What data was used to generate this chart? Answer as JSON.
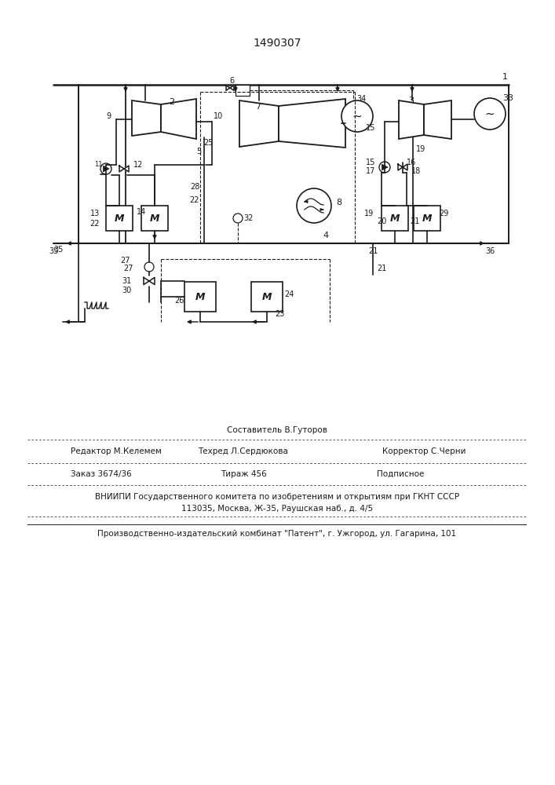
{
  "patent_number": "1490307",
  "bg": "#ffffff",
  "lc": "#1a1a1a",
  "footer": {
    "editor": "Редактор М.Келемем",
    "composer": "Составитель В.Гуторов",
    "techred": "Техред Л.Сердюкова",
    "corrector": "Корректор С.Черни",
    "order": "Заказ 3674/36",
    "tirazh": "Тираж 456",
    "podpisnoe": "Подписное",
    "vniip1": "ВНИИПИ Государственного комитета по изобретениям и открытиям при ГКНТ СССР",
    "vniip2": "113035, Москва, Ж-35, Раушская наб., д. 4/5",
    "plant": "Производственно-издательский комбинат \"Патент\", г. Ужгород, ул. Гагарина, 101"
  }
}
